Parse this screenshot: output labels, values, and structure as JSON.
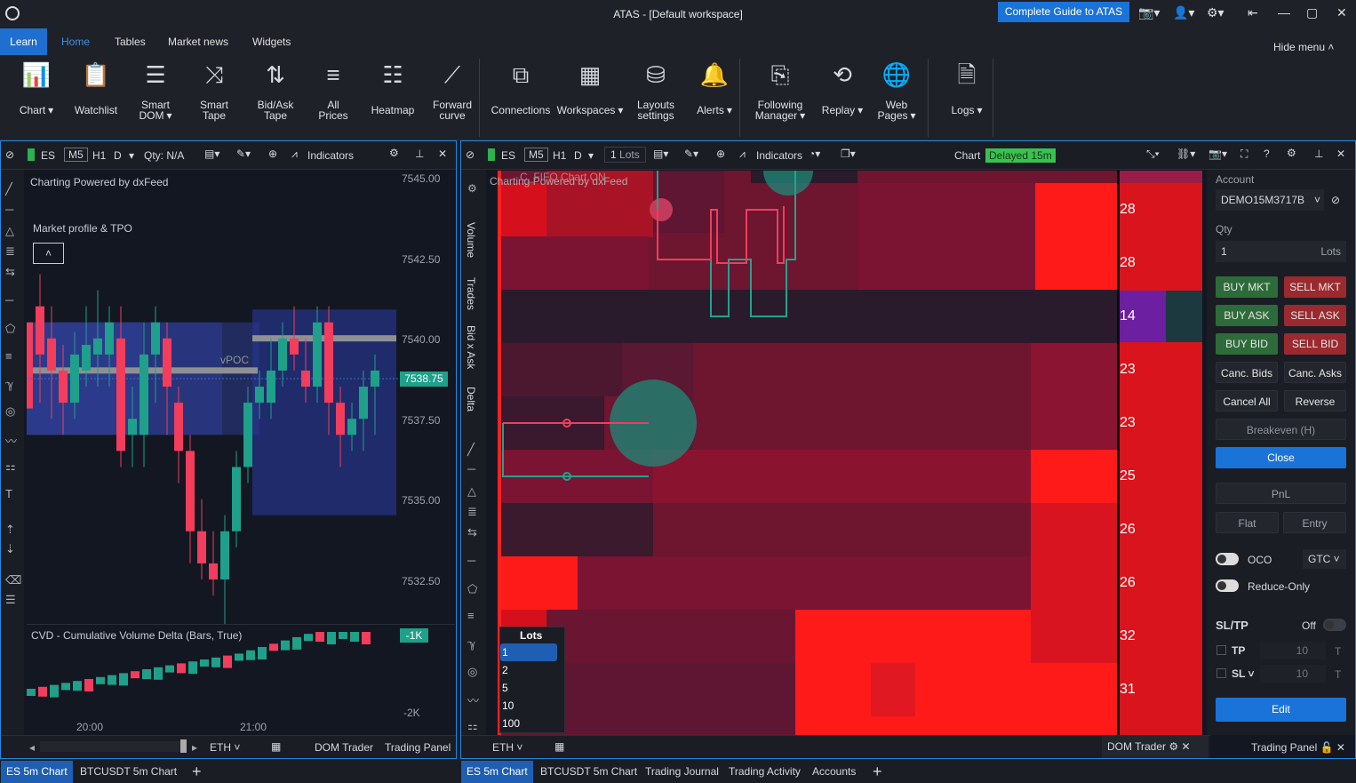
{
  "app": {
    "title": "ATAS - [Default workspace]",
    "guide_button": "Complete Guide to ATAS"
  },
  "menu": {
    "tabs": [
      "Learn",
      "Home",
      "Tables",
      "Market news",
      "Widgets"
    ],
    "hide_menu": "Hide menu"
  },
  "ribbon": [
    {
      "icon": "chart-icon",
      "label": "Chart",
      "dropdown": true
    },
    {
      "icon": "watchlist-icon",
      "label": "Watchlist"
    },
    {
      "icon": "smart-dom-icon",
      "label": "Smart\nDOM",
      "dropdown": true
    },
    {
      "icon": "smart-tape-icon",
      "label": "Smart\nTape"
    },
    {
      "icon": "bidask-tape-icon",
      "label": "Bid/Ask\nTape"
    },
    {
      "icon": "all-prices-icon",
      "label": "All\nPrices"
    },
    {
      "icon": "heatmap-icon",
      "label": "Heatmap"
    },
    {
      "icon": "forward-curve-icon",
      "label": "Forward\ncurve"
    },
    {
      "icon": "connections-icon",
      "label": "Connections"
    },
    {
      "icon": "workspaces-icon",
      "label": "Workspaces",
      "dropdown": true
    },
    {
      "icon": "layouts-icon",
      "label": "Layouts\nsettings"
    },
    {
      "icon": "bell-icon",
      "label": "Alerts",
      "dropdown": true
    },
    {
      "icon": "following-manager-icon",
      "label": "Following\nManager",
      "dropdown": true
    },
    {
      "icon": "replay-icon",
      "label": "Replay",
      "dropdown": true
    },
    {
      "icon": "globe-icon",
      "label": "Web\nPages",
      "dropdown": true
    },
    {
      "icon": "logs-icon",
      "label": "Logs",
      "dropdown": true
    }
  ],
  "left_chart": {
    "symbol": "ES",
    "tf_m5": "M5",
    "tf_h1": "H1",
    "tf_d": "D",
    "qty": "Qty: N/A",
    "indicators": "Indicators",
    "powered": "Charting Powered by dxFeed",
    "profile": "Market profile & TPO",
    "vpoc": "vPOC",
    "prices": [
      "7545.00",
      "7542.50",
      "7540.00",
      "7537.50",
      "7535.00",
      "7532.50"
    ],
    "current_price": "7538.75",
    "cvd_label": "CVD - Cumulative Volume Delta (Bars, True)",
    "cvd_badge": "-1K",
    "cvd_low": "-2K",
    "times": [
      "20:00",
      "21:00"
    ],
    "bottom": {
      "session": "ETH",
      "dom": "DOM Trader",
      "trading": "Trading Panel"
    }
  },
  "right_chart": {
    "symbol": "ES",
    "tf_m5": "M5",
    "tf_h1": "H1",
    "tf_d": "D",
    "lots": "1",
    "lots_unit": "Lots",
    "indicators": "Indicators",
    "chart_label": "Chart",
    "delayed": "Delayed 15m",
    "powered": "Charting Powered by dxFeed",
    "fifo": "C_FIFO",
    "chart_on": "Chart ON",
    "side_labels": [
      "Volume",
      "Trades",
      "Bid x Ask",
      "Delta"
    ],
    "dom_values": [
      "28",
      "28",
      "14",
      "23",
      "23",
      "25",
      "26",
      "26",
      "32",
      "31"
    ],
    "lots_popup": {
      "title": "Lots",
      "options": [
        "1",
        "2",
        "5",
        "10",
        "100"
      ]
    },
    "bottom": {
      "session": "ETH",
      "dom": "DOM Trader",
      "trading": "Trading Panel"
    }
  },
  "trading_panel": {
    "account_label": "Account",
    "account": "DEMO15M3717B",
    "qty_label": "Qty",
    "qty": "1",
    "qty_unit": "Lots",
    "buttons": [
      [
        "BUY MKT",
        "SELL MKT"
      ],
      [
        "BUY ASK",
        "SELL ASK"
      ],
      [
        "BUY BID",
        "SELL BID"
      ],
      [
        "Canc. Bids",
        "Canc. Asks"
      ],
      [
        "Cancel All",
        "Reverse"
      ]
    ],
    "breakeven": "Breakeven (H)",
    "close": "Close",
    "pnl": "PnL",
    "flat": "Flat",
    "entry": "Entry",
    "oco": "OCO",
    "gtc": "GTC",
    "reduce_only": "Reduce-Only",
    "sltp": "SL/TP",
    "sltp_state": "Off",
    "tp": "TP",
    "tp_val": "10",
    "sl": "SL",
    "sl_val": "10",
    "unit_t": "T",
    "edit": "Edit"
  },
  "bottom_tabs_left": [
    "ES 5m Chart",
    "BTCUSDT 5m Chart"
  ],
  "bottom_tabs_right": [
    "ES 5m Chart",
    "BTCUSDT 5m Chart",
    "Trading Journal",
    "Trading Activity",
    "Accounts"
  ]
}
